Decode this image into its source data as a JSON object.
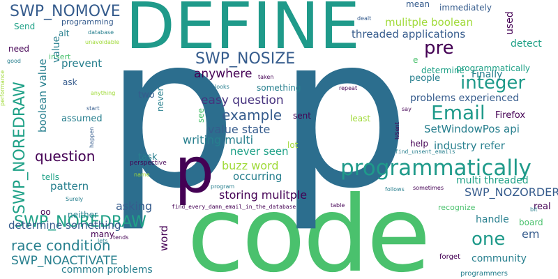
{
  "palette": {
    "dark_purple": "#440154",
    "indigo": "#46327e",
    "blue": "#365c8d",
    "teal_blue": "#277f8e",
    "teal": "#1fa187",
    "green": "#4ac16d",
    "lime": "#a0da39",
    "yellow": "#fde725",
    "background": "#ffffff"
  },
  "words": {
    "code": "code",
    "p": "p",
    "define": "DEFINE",
    "p_small": "p",
    "programmatically": "programmatically",
    "email": "Email",
    "swp_nosize": "SWP_NOSIZE",
    "swp_nomove": "SWP_NOMOVE",
    "swp_noredraw": "SWP_NOREDRAW",
    "swp_nozorder": "SWP_NOZORDER",
    "swp_noactivate": "SWP_NOACTIVATE",
    "pre": "pre",
    "integer": "integer",
    "one": "one",
    "question": "question",
    "race_condition": "race condition",
    "example": "example",
    "easy_question": "easy question",
    "anywhere": "anywhere",
    "value_state": "value state",
    "writing_multi": "writing multi",
    "buzz_word": "buzz word",
    "occurring": "occurring",
    "storing_mulitple": "storing mulitple",
    "never_seen": "never seen",
    "asking": "asking",
    "pattern": "pattern",
    "determine_something": "determine something",
    "common_problems": "common problems",
    "threaded_applications": "threaded applications",
    "mulitple_boolean": "mulitple boolean",
    "boolean_value": "boolean value",
    "prevent": "prevent",
    "setwindowpos_api": "SetWindowPos api",
    "industry_refer": "industry refer",
    "multi_threaded": "multi threaded",
    "problems_experienced": "problems experienced",
    "community": "community",
    "handle": "handle",
    "em": "em",
    "word": "word",
    "detect": "detect",
    "finally": "Finally",
    "determine": "determine",
    "programmatically_small": "programmatically",
    "people": "people",
    "firefox": "Firefox",
    "immediately": "immediately",
    "mean": "mean",
    "used": "used",
    "something": "something",
    "two": "two",
    "never": "never",
    "see": "see",
    "sent": "sent",
    "least": "least",
    "lot": "lot",
    "help": "help",
    "task": "task",
    "assumed": "assumed",
    "tells": "tells",
    "neither": "neither",
    "many": "many",
    "oo": "oo",
    "ask": "ask",
    "alt": "alt",
    "need": "need",
    "send": "Send",
    "insert": "insert",
    "value": "value",
    "programming": "programming",
    "database": "database",
    "unavoidable": "unavoidable",
    "good": "good",
    "dealt": "dealt",
    "e": "e",
    "say": "say",
    "taken": "taken",
    "looks": "looks",
    "repeat": "repeat",
    "isSent": "IsSent",
    "anything": "anything",
    "start": "start",
    "performance": "performance",
    "happen": "happen",
    "perspective": "perspective",
    "name": "name",
    "surely": "Surely",
    "lets": "lets",
    "tends": "tends",
    "program": "program",
    "table": "table",
    "find_every": "find_every_damn_email_in_the_database",
    "find_unsent": "find_unsent_emails",
    "follows": "follows",
    "sometimes": "sometimes",
    "recognize": "recognize",
    "bit": "bit",
    "board": "board",
    "real": "real",
    "forget": "forget",
    "programmers": "programmers"
  }
}
